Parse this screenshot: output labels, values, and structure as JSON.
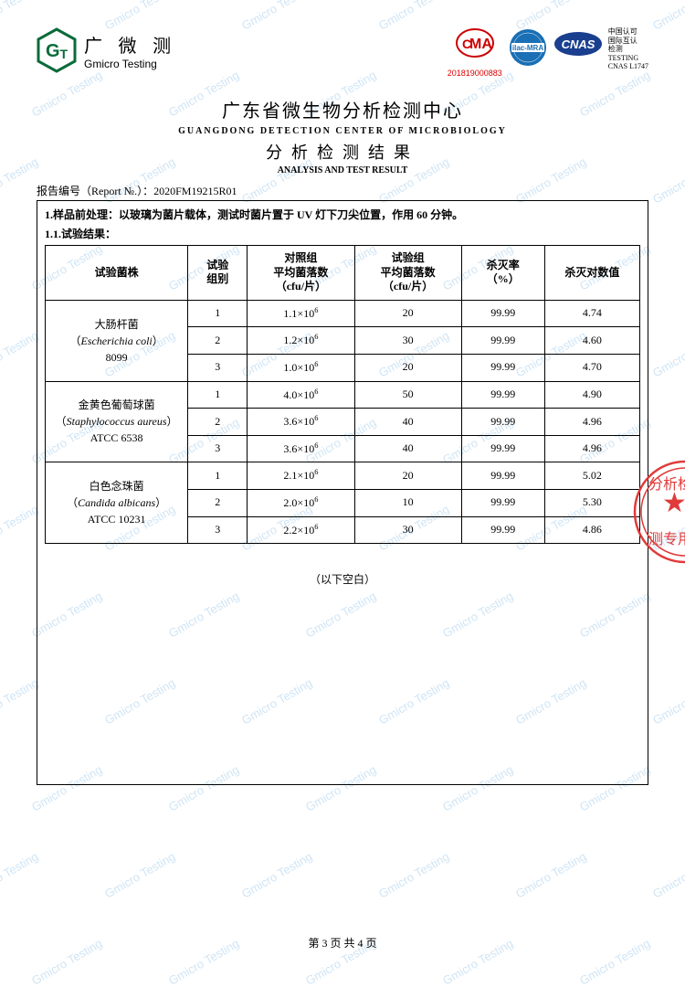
{
  "watermark_text": "Gmicro Testing",
  "logo": {
    "cn": "广 微 测",
    "en": "Gmicro Testing",
    "badge_text": "GT",
    "badge_color": "#0a6b3a"
  },
  "cert": {
    "cma_label": "MA",
    "cma_c": "C",
    "cma_number": "201819000883",
    "cma_color": "#cc0000",
    "ilac_label": "ilac-MRA",
    "ilac_color": "#1a6fb5",
    "cnas_label": "CNAS",
    "cnas_color": "#1a3f8f",
    "cnas_lines": [
      "中国认可",
      "国际互认",
      "检测",
      "TESTING",
      "CNAS L1747"
    ]
  },
  "titles": {
    "main_cn": "广东省微生物分析检测中心",
    "main_en": "GUANGDONG  DETECTION  CENTER  OF  MICROBIOLOGY",
    "sub_cn": "分析检测结果",
    "sub_en": "ANALYSIS AND TEST RESULT"
  },
  "report_no_label": "报告编号（Report №.）：",
  "report_no": "2020FM19215R01",
  "pretreatment": "1.样品前处理：以玻璃为菌片载体，测试时菌片置于 UV 灯下刀尖位置，作用 60 分钟。",
  "result_label": "1.1.试验结果：",
  "table": {
    "columns": [
      "试验菌株",
      "试验\n组别",
      "对照组\n平均菌落数\n（cfu/片）",
      "试验组\n平均菌落数\n（cfu/片）",
      "杀灭率\n（%）",
      "杀灭对数值"
    ],
    "col_widths": [
      "24%",
      "10%",
      "18%",
      "18%",
      "14%",
      "16%"
    ],
    "groups": [
      {
        "species_cn": "大肠杆菌",
        "species_latin": "Escherichia coli",
        "species_code": "8099",
        "rows": [
          {
            "trial": "1",
            "control": "1.1×10",
            "control_exp": "6",
            "test": "20",
            "kill_rate": "99.99",
            "log": "4.74"
          },
          {
            "trial": "2",
            "control": "1.2×10",
            "control_exp": "6",
            "test": "30",
            "kill_rate": "99.99",
            "log": "4.60"
          },
          {
            "trial": "3",
            "control": "1.0×10",
            "control_exp": "6",
            "test": "20",
            "kill_rate": "99.99",
            "log": "4.70"
          }
        ]
      },
      {
        "species_cn": "金黄色葡萄球菌",
        "species_latin": "Staphylococcus aureus",
        "species_code": "ATCC 6538",
        "rows": [
          {
            "trial": "1",
            "control": "4.0×10",
            "control_exp": "6",
            "test": "50",
            "kill_rate": "99.99",
            "log": "4.90"
          },
          {
            "trial": "2",
            "control": "3.6×10",
            "control_exp": "6",
            "test": "40",
            "kill_rate": "99.99",
            "log": "4.96"
          },
          {
            "trial": "3",
            "control": "3.6×10",
            "control_exp": "6",
            "test": "40",
            "kill_rate": "99.99",
            "log": "4.96"
          }
        ]
      },
      {
        "species_cn": "白色念珠菌",
        "species_latin": "Candida albicans",
        "species_code": "ATCC 10231",
        "rows": [
          {
            "trial": "1",
            "control": "2.1×10",
            "control_exp": "6",
            "test": "20",
            "kill_rate": "99.99",
            "log": "5.02"
          },
          {
            "trial": "2",
            "control": "2.0×10",
            "control_exp": "6",
            "test": "10",
            "kill_rate": "99.99",
            "log": "5.30"
          },
          {
            "trial": "3",
            "control": "2.2×10",
            "control_exp": "6",
            "test": "30",
            "kill_rate": "99.99",
            "log": "4.86"
          }
        ]
      }
    ]
  },
  "blank_note": "（以下空白）",
  "stamp": {
    "color": "#e03a3a",
    "text_top": "分析检",
    "text_bottom": "测专用"
  },
  "footer": "第 3 页 共 4 页"
}
